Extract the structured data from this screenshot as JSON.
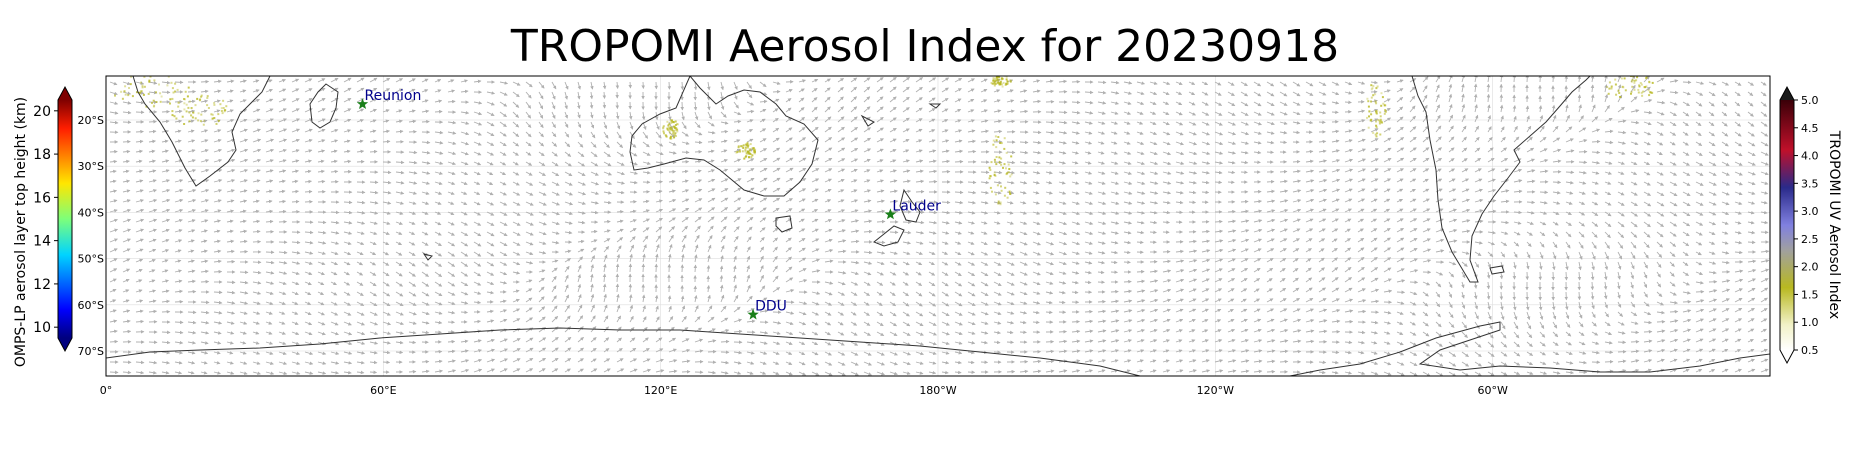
{
  "title": "TROPOMI Aerosol Index for 20230918",
  "map": {
    "x_ticks": [
      "0°",
      "60°E",
      "120°E",
      "180°W",
      "120°W",
      "60°W"
    ],
    "y_ticks": [
      "20°S",
      "30°S",
      "40°S",
      "50°S",
      "60°S",
      "70°S"
    ],
    "stations": [
      {
        "name": "Reunion",
        "lon": 55.5,
        "lat": -21.1
      },
      {
        "name": "Lauder",
        "lon": 169.7,
        "lat": -45.0
      },
      {
        "name": "DDU",
        "lon": 140.0,
        "lat": -66.7
      }
    ],
    "station_marker_color": "#1a7f1a",
    "station_label_color": "#00008b",
    "coastline_color": "#333333",
    "wind_arrow_color": "#b0b0b0",
    "aerosol_color": "#b8b820"
  },
  "left_colorbar": {
    "label": "OMPS-LP aerosol layer top height (km)",
    "ticks": [
      "20",
      "18",
      "16",
      "14",
      "12",
      "10"
    ],
    "range": [
      9.5,
      20.5
    ],
    "colormap": "jet"
  },
  "right_colorbar": {
    "label": "TROPOMI UV Aerosol Index",
    "ticks": [
      "5.0",
      "4.5",
      "4.0",
      "3.5",
      "3.0",
      "2.5",
      "2.0",
      "1.5",
      "1.0",
      "0.5"
    ],
    "range": [
      0.5,
      5.0
    ]
  }
}
